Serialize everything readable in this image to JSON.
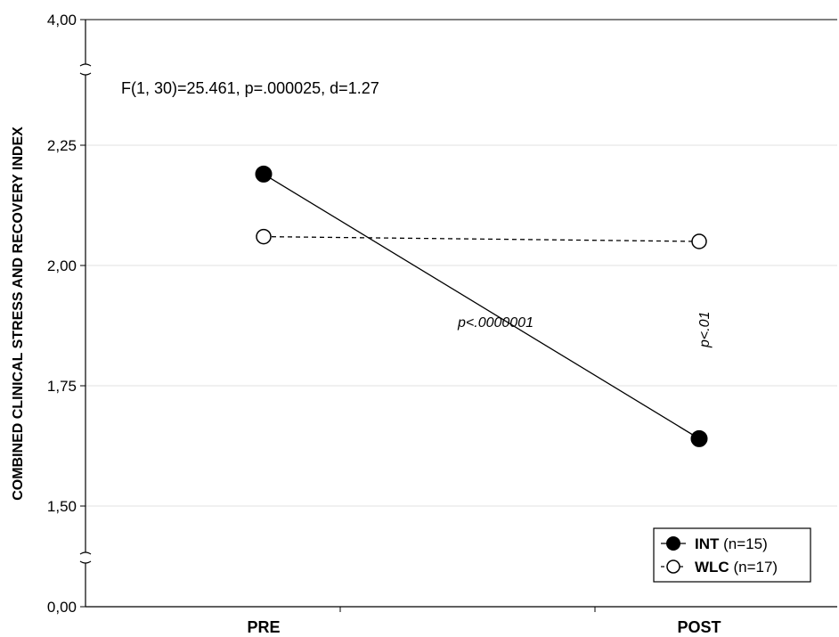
{
  "chart_data": {
    "type": "line",
    "ylabel": "COMBINED CLINICAL STRESS AND RECOVERY INDEX",
    "categories": [
      "PRE",
      "POST"
    ],
    "y_ticks": [
      "0,00",
      "1,50",
      "1,75",
      "2,00",
      "2,25",
      "4,00"
    ],
    "y_axis_broken": true,
    "grid": "horizontal",
    "series": [
      {
        "name": "INT",
        "n_label": "(n=15)",
        "values": [
          2.19,
          1.64
        ],
        "marker": "filled-circle",
        "line": "solid"
      },
      {
        "name": "WLC",
        "n_label": "(n=17)",
        "values": [
          2.06,
          2.05
        ],
        "marker": "open-circle",
        "line": "dashed"
      }
    ],
    "annotations": {
      "stats": "F(1, 30)=25.461, p=.000025, d=1.27",
      "int_change": "p<.0000001",
      "post_diff": "p<.01"
    },
    "legend_position": "bottom-right"
  }
}
